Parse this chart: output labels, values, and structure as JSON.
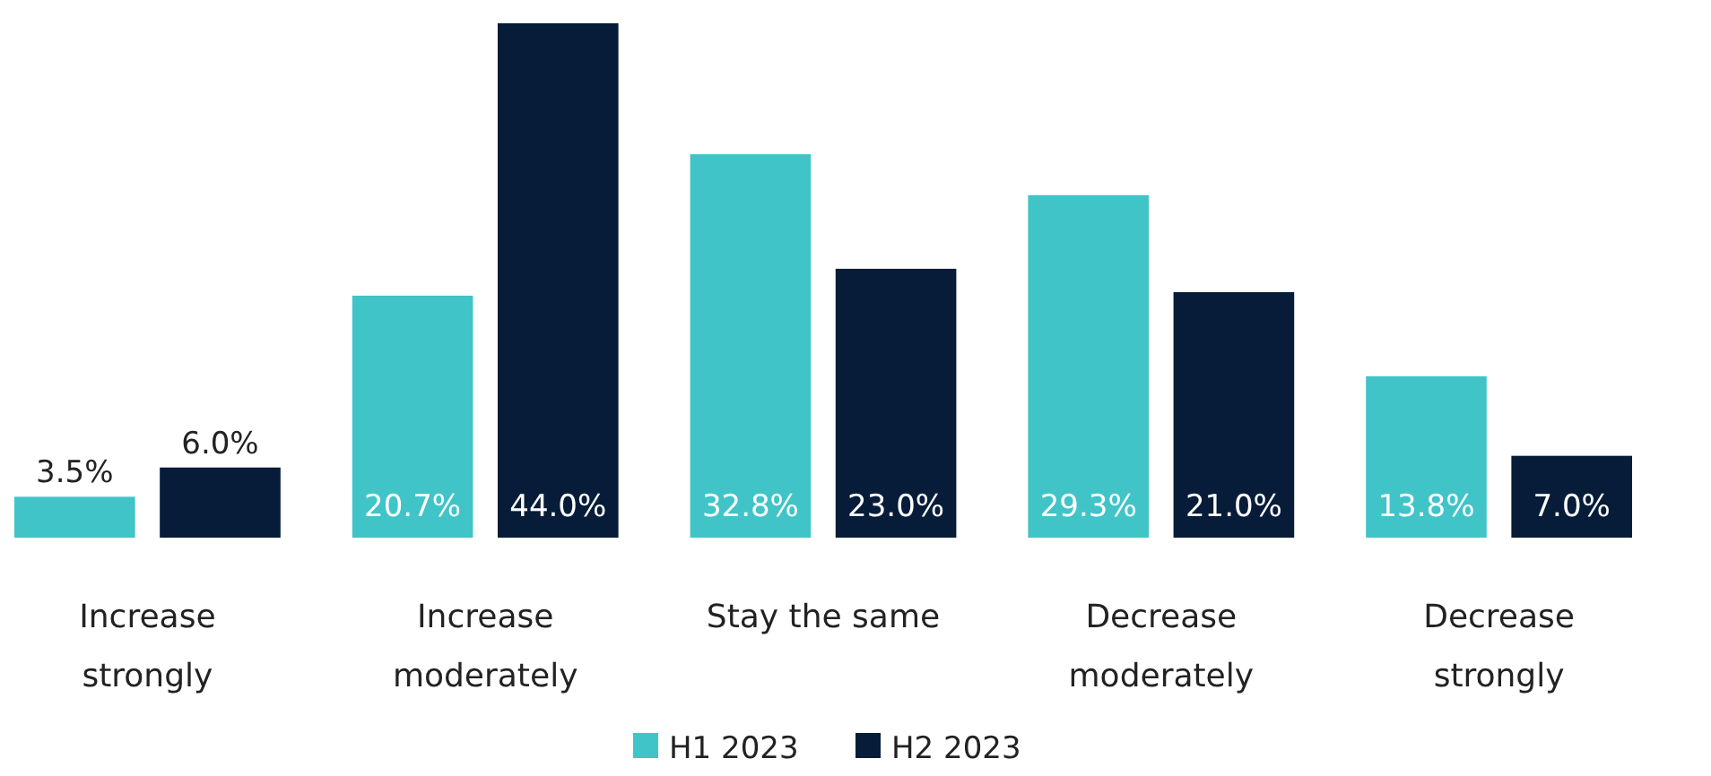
{
  "chart_data": {
    "type": "bar",
    "categories": [
      "Increase strongly",
      "Increase moderately",
      "Stay the same",
      "Decrease moderately",
      "Decrease strongly"
    ],
    "series": [
      {
        "name": "H1 2023",
        "color": "#40c4c8",
        "values": [
          3.5,
          20.7,
          32.8,
          29.3,
          13.8
        ],
        "value_labels": [
          "3.5%",
          "20.7%",
          "32.8%",
          "29.3%",
          "13.8%"
        ]
      },
      {
        "name": "H2 2023",
        "color": "#061c38",
        "values": [
          6.0,
          44.0,
          23.0,
          21.0,
          7.0
        ],
        "value_labels": [
          "6.0%",
          "44.0%",
          "23.0%",
          "21.0%",
          "7.0%"
        ]
      }
    ],
    "legend": "bottom"
  }
}
